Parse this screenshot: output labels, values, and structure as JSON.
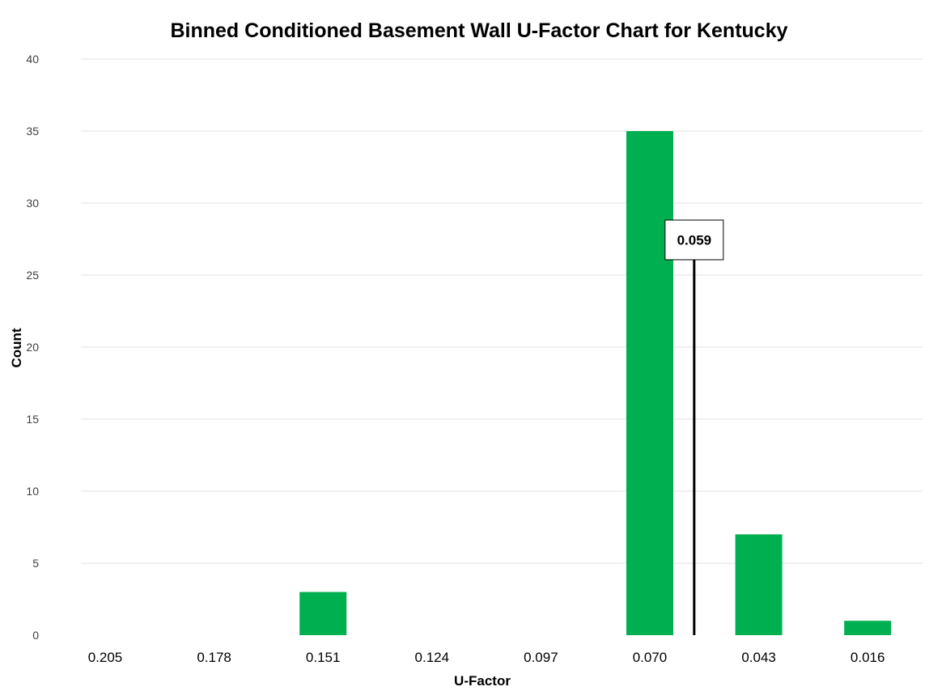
{
  "chart_data": {
    "type": "bar",
    "title": "Binned Conditioned Basement Wall U-Factor Chart for Kentucky",
    "xlabel": "U-Factor",
    "ylabel": "Count",
    "categories": [
      "0.205",
      "0.178",
      "0.151",
      "0.124",
      "0.097",
      "0.070",
      "0.043",
      "0.016"
    ],
    "values": [
      0,
      0,
      3,
      0,
      0,
      35,
      7,
      1
    ],
    "ylim": [
      0,
      40
    ],
    "yticks": [
      "0",
      "5",
      "10",
      "15",
      "20",
      "25",
      "30",
      "35",
      "40"
    ],
    "grid": true,
    "legend": "none",
    "bar_color": "#00b050",
    "reference_line": {
      "value": 0.059,
      "label": "0.059",
      "color": "#000000"
    }
  }
}
